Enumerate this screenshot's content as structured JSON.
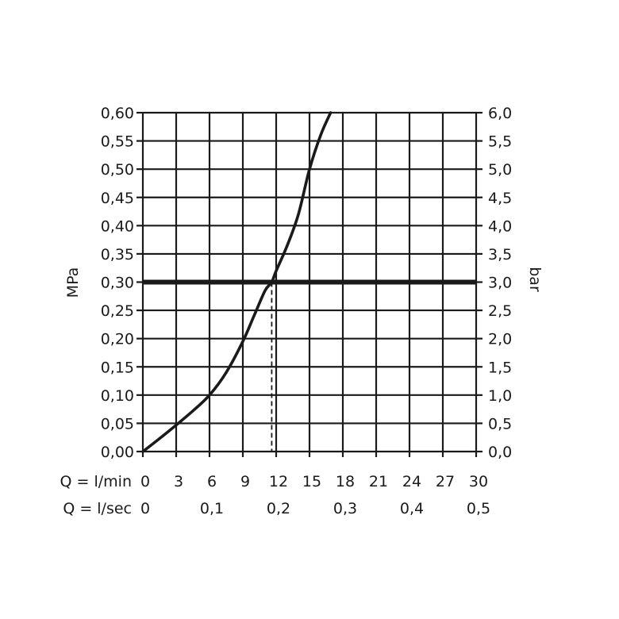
{
  "chart_data": {
    "type": "line",
    "title": "",
    "ylabel_left": "MPa",
    "ylabel_right": "bar",
    "xlim": [
      0,
      30
    ],
    "ylim": [
      0,
      0.6
    ],
    "grid": true,
    "y_ticks_left": [
      "0,00",
      "0,05",
      "0,10",
      "0,15",
      "0,20",
      "0,25",
      "0,30",
      "0,35",
      "0,40",
      "0,45",
      "0,50",
      "0,55",
      "0,60"
    ],
    "y_ticks_right": [
      "0,0",
      "0,5",
      "1,0",
      "1,5",
      "2,0",
      "2,5",
      "3,0",
      "3,5",
      "4,0",
      "4,5",
      "5,0",
      "5,5",
      "6,0"
    ],
    "x_axis_primary": {
      "label": "Q = l/min",
      "ticks": [
        0,
        3,
        6,
        9,
        12,
        15,
        18,
        21,
        24,
        27,
        30
      ],
      "tick_labels": [
        "0",
        "3",
        "6",
        "9",
        "12",
        "15",
        "18",
        "21",
        "24",
        "27",
        "30"
      ]
    },
    "x_axis_secondary": {
      "label": "Q = l/sec",
      "ticks": [
        0,
        6,
        12,
        18,
        24,
        30
      ],
      "tick_labels": [
        "0",
        "0,1",
        "0,2",
        "0,3",
        "0,4",
        "0,5"
      ]
    },
    "series": [
      {
        "x": [
          0,
          1.5,
          3,
          4.5,
          6,
          7.5,
          9,
          10,
          11,
          11.6,
          12,
          13,
          14,
          15,
          16,
          16.9
        ],
        "y": [
          0.0,
          0.023,
          0.047,
          0.072,
          0.1,
          0.14,
          0.195,
          0.24,
          0.285,
          0.3,
          0.32,
          0.365,
          0.42,
          0.5,
          0.56,
          0.6
        ]
      }
    ],
    "reference_line": {
      "y": 0.3
    },
    "operating_point": {
      "x": 11.6,
      "y": 0.3
    }
  }
}
